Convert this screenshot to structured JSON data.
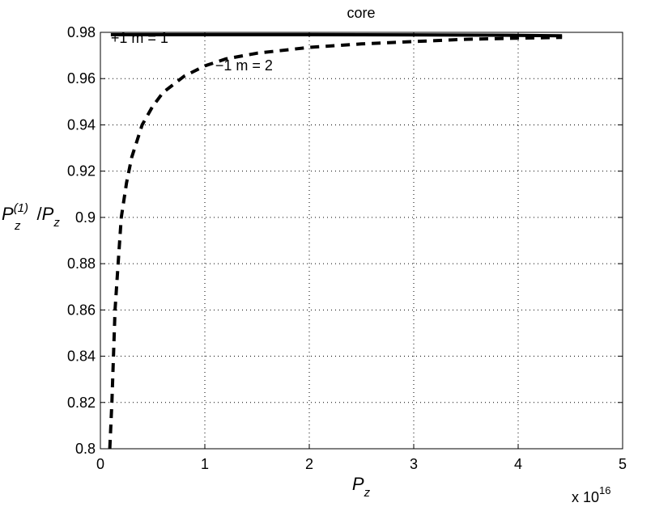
{
  "chart_data": {
    "type": "line",
    "title": "core",
    "xlabel": {
      "base": "P",
      "sub": "z"
    },
    "ylabel": {
      "base": "P",
      "sup": "(1)",
      "sub": "z",
      "sep": "/",
      "base2": "P",
      "sub2": "z"
    },
    "x_multiplier": {
      "prefix": "x 10",
      "exponent": "16"
    },
    "xlim": [
      0,
      5
    ],
    "ylim": [
      0.8,
      0.98
    ],
    "xticks": [
      0,
      1,
      2,
      3,
      4,
      5
    ],
    "xtick_labels": [
      "0",
      "1",
      "2",
      "3",
      "4",
      "5"
    ],
    "yticks": [
      0.8,
      0.82,
      0.84,
      0.86,
      0.88,
      0.9,
      0.92,
      0.94,
      0.96,
      0.98
    ],
    "ytick_labels": [
      "0.8",
      "0.82",
      "0.84",
      "0.86",
      "0.88",
      "0.9",
      "0.92",
      "0.94",
      "0.96",
      "0.98"
    ],
    "grid": true,
    "series": [
      {
        "style": "solid",
        "color": "#000000",
        "points": [
          [
            0.1,
            0.979
          ],
          [
            1.0,
            0.979
          ],
          [
            2.0,
            0.979
          ],
          [
            3.0,
            0.9789
          ],
          [
            4.0,
            0.9787
          ],
          [
            4.42,
            0.9785
          ]
        ]
      },
      {
        "style": "dashed",
        "color": "#000000",
        "points": [
          [
            0.09,
            0.8
          ],
          [
            0.11,
            0.82
          ],
          [
            0.14,
            0.86
          ],
          [
            0.17,
            0.88
          ],
          [
            0.2,
            0.9
          ],
          [
            0.25,
            0.915
          ],
          [
            0.3,
            0.926
          ],
          [
            0.4,
            0.94
          ],
          [
            0.5,
            0.948
          ],
          [
            0.6,
            0.954
          ],
          [
            0.8,
            0.961
          ],
          [
            1.0,
            0.9655
          ],
          [
            1.2,
            0.9685
          ],
          [
            1.5,
            0.971
          ],
          [
            2.0,
            0.9735
          ],
          [
            2.5,
            0.975
          ],
          [
            3.0,
            0.976
          ],
          [
            3.5,
            0.977
          ],
          [
            4.0,
            0.9775
          ],
          [
            4.42,
            0.9778
          ]
        ]
      }
    ],
    "annotations": [
      {
        "text": "+1  m = 1",
        "x": 0.1,
        "y": 0.9755
      },
      {
        "text": "−1  m = 2",
        "x": 1.1,
        "y": 0.9635
      }
    ]
  }
}
